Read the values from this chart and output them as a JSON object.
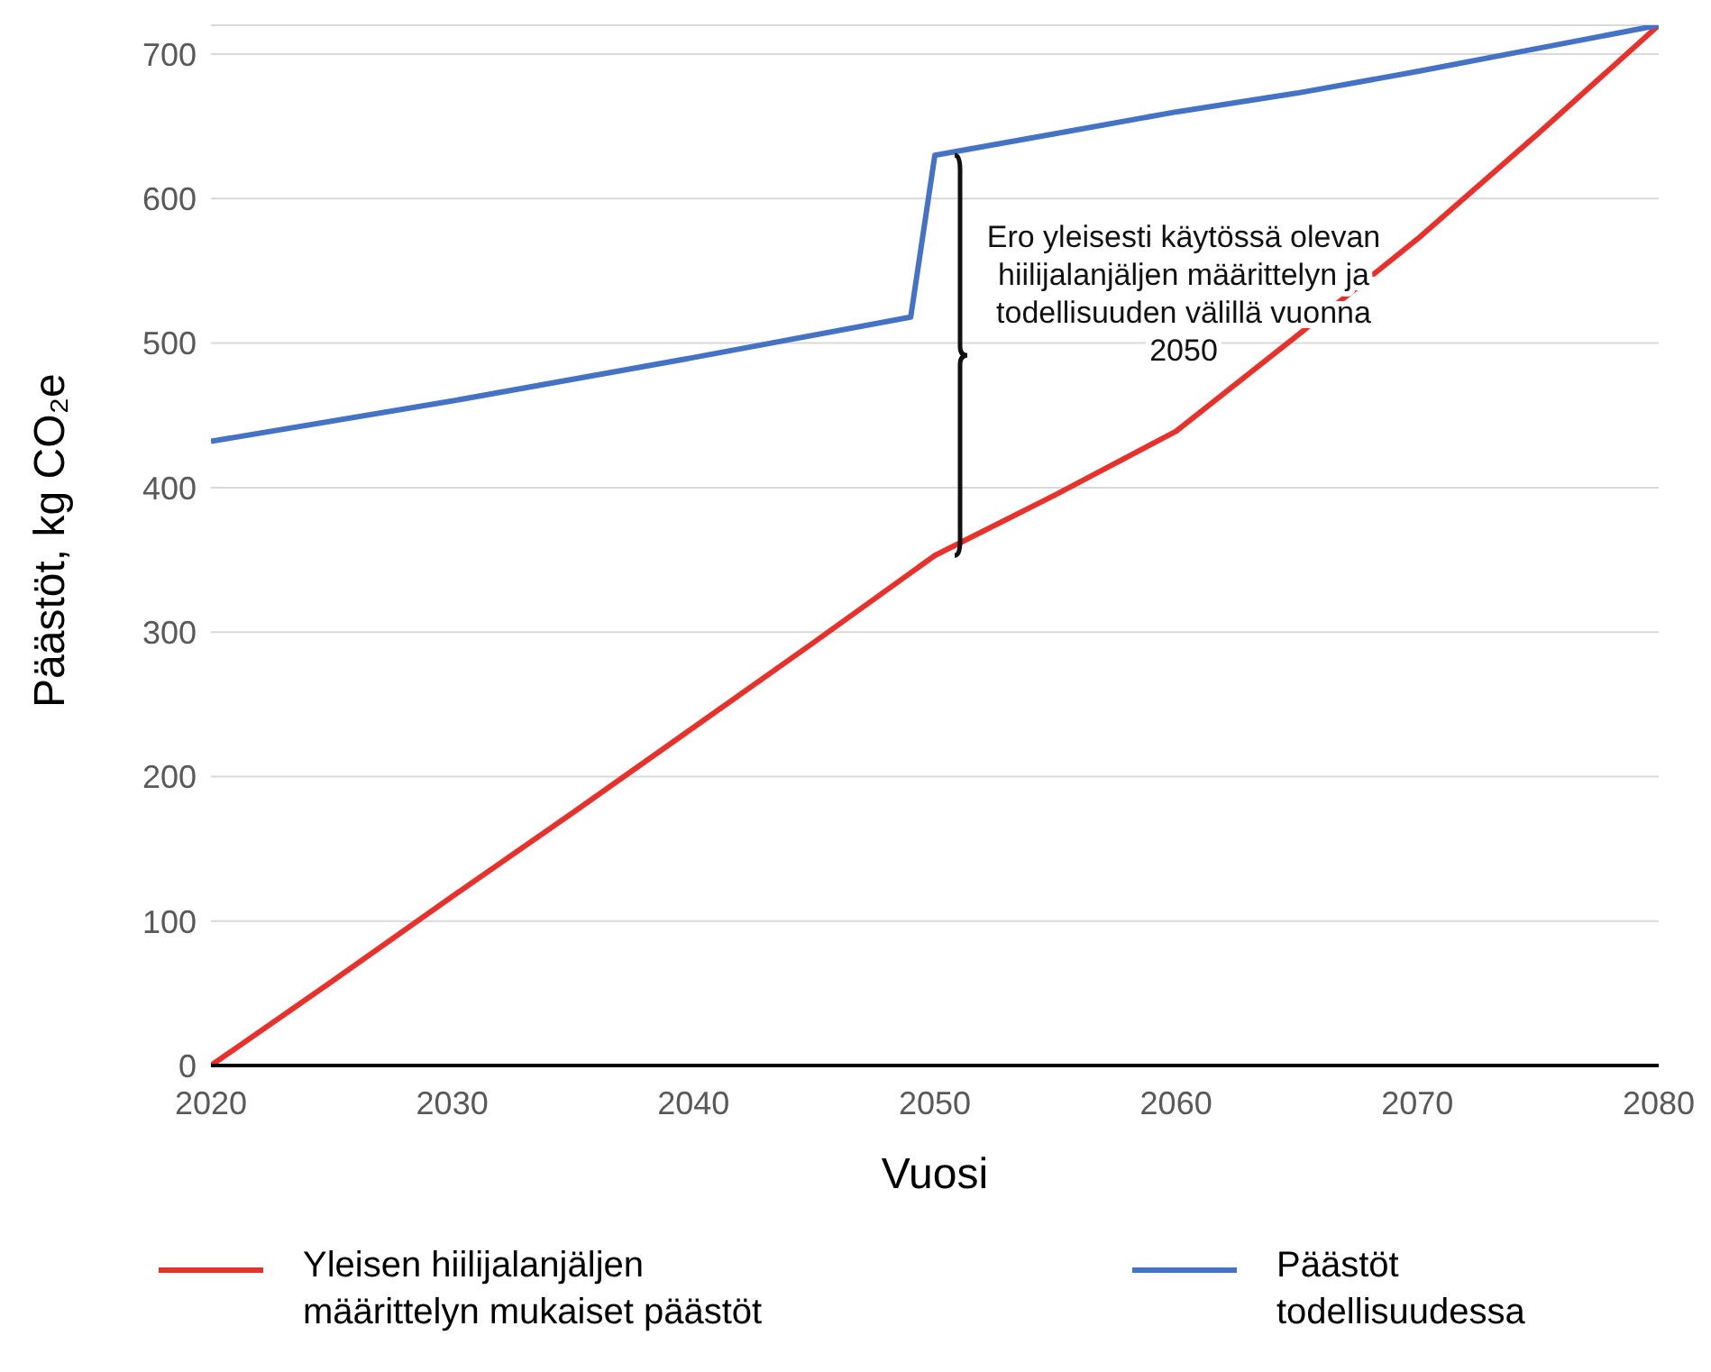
{
  "chart_data": {
    "type": "line",
    "xlabel": "Vuosi",
    "ylabel": "Päästöt, kg CO₂e",
    "xlim": [
      2020,
      2080
    ],
    "xticks": [
      2020,
      2030,
      2040,
      2050,
      2060,
      2070,
      2080
    ],
    "ylim": [
      0,
      720
    ],
    "yticks": [
      0,
      100,
      200,
      300,
      400,
      500,
      600,
      700
    ],
    "grid": "y",
    "legend": "bottom",
    "marker": "none",
    "line_style": "solid",
    "series": [
      {
        "name": "Yleisen hiilijalanjäljen määrittelyn mukaiset päästöt",
        "color": "#e8312a",
        "x": [
          2020,
          2025,
          2030,
          2035,
          2040,
          2045,
          2050,
          2055,
          2060,
          2065,
          2070,
          2075,
          2080
        ],
        "values": [
          0,
          58,
          117,
          175,
          234,
          293,
          353,
          395,
          439,
          505,
          572,
          645,
          720
        ]
      },
      {
        "name": "Päästöt todellisuudessa",
        "color": "#4472c4",
        "x": [
          2020,
          2030,
          2040,
          2049,
          2050,
          2055,
          2060,
          2065,
          2070,
          2075,
          2080
        ],
        "values": [
          432,
          460,
          490,
          518,
          630,
          645,
          660,
          673,
          688,
          704,
          720
        ]
      }
    ],
    "annotations": [
      "Ero yleisesti käytössä olevan\nhiilijalanjäljen määrittelyn ja\ntodellisuuden välillä vuonna\n2050"
    ]
  }
}
